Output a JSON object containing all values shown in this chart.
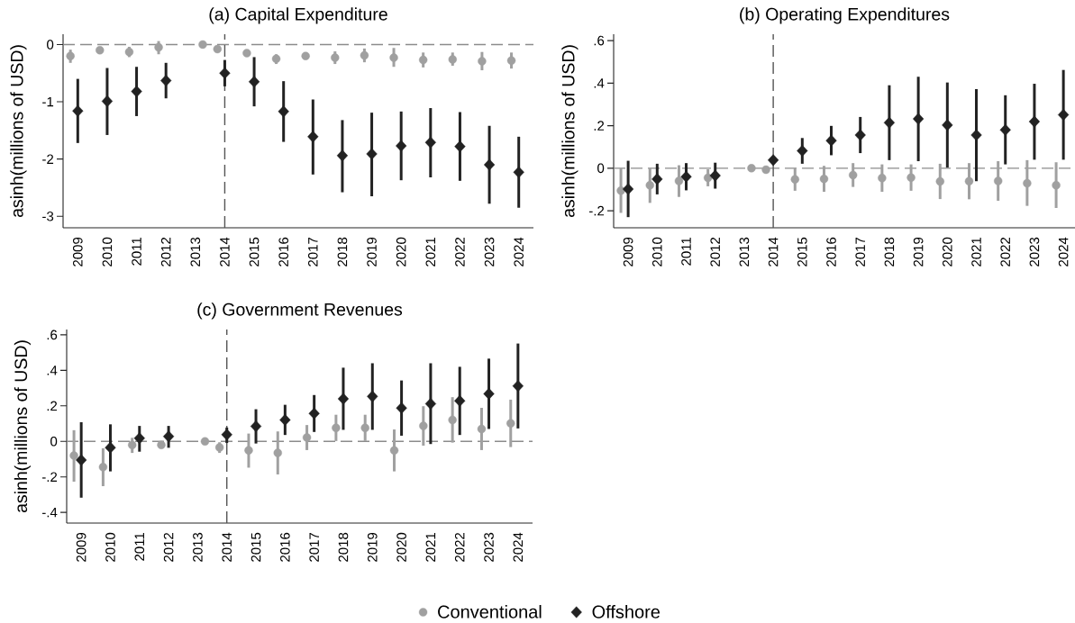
{
  "chart_data": [
    {
      "type": "scatter",
      "title": "(a) Capital Expenditure",
      "ylabel": "asinh(millions of USD)",
      "xlim": [
        2008.5,
        2024.5
      ],
      "ylim": [
        -3.2,
        0.18
      ],
      "xticks": [
        2009,
        2010,
        2011,
        2012,
        2013,
        2014,
        2015,
        2016,
        2017,
        2018,
        2019,
        2020,
        2021,
        2022,
        2023,
        2024
      ],
      "yticks": [
        -3,
        -2,
        -1,
        0
      ],
      "ref_lines": [
        {
          "axis": "y",
          "value": 0,
          "line_style": "dashed",
          "color": "#8c8c8c"
        },
        {
          "axis": "x",
          "value": 2014,
          "line_style": "dashed",
          "color": "#555555"
        }
      ],
      "series": [
        {
          "color": "#a0a0a0",
          "marker": "circle",
          "x": [
            2008.75,
            2009.75,
            2010.75,
            2011.75,
            2013.25,
            2013.75,
            2014.75,
            2015.75,
            2016.75,
            2017.75,
            2018.75,
            2019.75,
            2020.75,
            2021.75,
            2022.75,
            2023.75
          ],
          "values": [
            -0.2,
            -0.1,
            -0.13,
            -0.05,
            0,
            -0.08,
            -0.15,
            -0.25,
            -0.2,
            -0.23,
            -0.19,
            -0.23,
            -0.27,
            -0.26,
            -0.29,
            -0.28
          ],
          "errors": [
            [
              -0.32,
              -0.09
            ],
            [
              -0.16,
              -0.04
            ],
            [
              -0.22,
              -0.04
            ],
            [
              -0.17,
              0.06
            ],
            null,
            null,
            null,
            [
              -0.34,
              -0.17
            ],
            [
              -0.26,
              -0.14
            ],
            [
              -0.34,
              -0.12
            ],
            [
              -0.31,
              -0.07
            ],
            [
              -0.39,
              -0.06
            ],
            [
              -0.4,
              -0.14
            ],
            [
              -0.37,
              -0.14
            ],
            [
              -0.45,
              -0.13
            ],
            [
              -0.42,
              -0.14
            ]
          ]
        },
        {
          "color": "#222222",
          "marker": "diamond",
          "x": [
            2009,
            2010,
            2011,
            2012,
            2014,
            2015,
            2016,
            2017,
            2018,
            2019,
            2020,
            2021,
            2022,
            2023,
            2024
          ],
          "values": [
            -1.16,
            -0.99,
            -0.82,
            -0.63,
            -0.5,
            -0.65,
            -1.17,
            -1.61,
            -1.94,
            -1.91,
            -1.77,
            -1.71,
            -1.78,
            -2.1,
            -2.23
          ],
          "errors": [
            [
              -1.72,
              -0.6
            ],
            [
              -1.58,
              -0.41
            ],
            [
              -1.25,
              -0.39
            ],
            [
              -0.94,
              -0.32
            ],
            [
              -0.73,
              -0.27
            ],
            [
              -1.08,
              -0.22
            ],
            [
              -1.7,
              -0.64
            ],
            [
              -2.27,
              -0.96
            ],
            [
              -2.58,
              -1.32
            ],
            [
              -2.65,
              -1.19
            ],
            [
              -2.37,
              -1.17
            ],
            [
              -2.32,
              -1.11
            ],
            [
              -2.38,
              -1.18
            ],
            [
              -2.78,
              -1.42
            ],
            [
              -2.85,
              -1.61
            ]
          ]
        }
      ]
    },
    {
      "type": "scatter",
      "title": "(b) Operating Expenditures",
      "ylabel": "asinh(millions of USD)",
      "xlim": [
        2008.5,
        2024.4
      ],
      "ylim": [
        -0.28,
        0.63
      ],
      "xticks": [
        2009,
        2010,
        2011,
        2012,
        2013,
        2014,
        2015,
        2016,
        2017,
        2018,
        2019,
        2020,
        2021,
        2022,
        2023,
        2024
      ],
      "yticks": [
        {
          "value": -0.2,
          "label": "-.2"
        },
        0,
        {
          "value": 0.2,
          "label": ".2"
        },
        {
          "value": 0.4,
          "label": ".4"
        },
        {
          "value": 0.6,
          "label": ".6"
        }
      ],
      "ref_lines": [
        {
          "axis": "y",
          "value": 0,
          "line_style": "dashed",
          "color": "#8c8c8c"
        },
        {
          "axis": "x",
          "value": 2014,
          "line_style": "dashed",
          "color": "#555555"
        }
      ],
      "series": [
        {
          "color": "#a0a0a0",
          "marker": "circle",
          "x": [
            2008.75,
            2009.75,
            2010.75,
            2011.75,
            2013.25,
            2013.75,
            2014.75,
            2015.75,
            2016.75,
            2017.75,
            2018.75,
            2019.75,
            2020.75,
            2021.75,
            2022.75,
            2023.75
          ],
          "values": [
            -0.105,
            -0.08,
            -0.06,
            -0.045,
            0,
            -0.007,
            -0.052,
            -0.05,
            -0.032,
            -0.046,
            -0.044,
            -0.062,
            -0.061,
            -0.06,
            -0.071,
            -0.08
          ],
          "errors": [
            [
              -0.21,
              0
            ],
            [
              -0.163,
              0
            ],
            [
              -0.135,
              0.014
            ],
            [
              -0.085,
              -0.005
            ],
            null,
            null,
            [
              -0.106,
              0
            ],
            [
              -0.111,
              0.011
            ],
            [
              -0.088,
              0.024
            ],
            [
              -0.111,
              0.018
            ],
            [
              -0.106,
              0.018
            ],
            [
              -0.145,
              0.021
            ],
            [
              -0.146,
              0.024
            ],
            [
              -0.153,
              0.033
            ],
            [
              -0.177,
              0.038
            ],
            [
              -0.187,
              0.028
            ]
          ]
        },
        {
          "color": "#222222",
          "marker": "diamond",
          "x": [
            2009,
            2010,
            2011,
            2012,
            2014,
            2015,
            2016,
            2017,
            2018,
            2019,
            2020,
            2021,
            2022,
            2023,
            2024
          ],
          "values": [
            -0.098,
            -0.051,
            -0.04,
            -0.035,
            0.038,
            0.082,
            0.13,
            0.156,
            0.214,
            0.232,
            0.203,
            0.156,
            0.18,
            0.219,
            0.251
          ],
          "errors": [
            [
              -0.23,
              0.035
            ],
            [
              -0.123,
              0.021
            ],
            [
              -0.104,
              0.024
            ],
            [
              -0.096,
              0.026
            ],
            null,
            [
              0.021,
              0.142
            ],
            [
              0.061,
              0.199
            ],
            [
              0.071,
              0.241
            ],
            [
              0.038,
              0.39
            ],
            [
              0.033,
              0.43
            ],
            [
              0.003,
              0.403
            ],
            [
              -0.061,
              0.372
            ],
            [
              0.018,
              0.343
            ],
            [
              0.04,
              0.397
            ],
            [
              0.04,
              0.462
            ]
          ]
        }
      ]
    },
    {
      "type": "scatter",
      "title": "(c) Government Revenues",
      "ylabel": "asinh(millions of USD)",
      "xlim": [
        2008.5,
        2024.5
      ],
      "ylim": [
        -0.46,
        0.63
      ],
      "xticks": [
        2009,
        2010,
        2011,
        2012,
        2013,
        2014,
        2015,
        2016,
        2017,
        2018,
        2019,
        2020,
        2021,
        2022,
        2023,
        2024
      ],
      "yticks": [
        {
          "value": -0.4,
          "label": "-.4"
        },
        {
          "value": -0.2,
          "label": "-.2"
        },
        0,
        {
          "value": 0.2,
          "label": ".2"
        },
        {
          "value": 0.4,
          "label": ".4"
        },
        {
          "value": 0.6,
          "label": ".6"
        }
      ],
      "legend": "bottom",
      "ref_lines": [
        {
          "axis": "y",
          "value": 0,
          "line_style": "dashed",
          "color": "#8c8c8c"
        },
        {
          "axis": "x",
          "value": 2014,
          "line_style": "dashed",
          "color": "#555555"
        }
      ],
      "series": [
        {
          "name": "Conventional",
          "color": "#a0a0a0",
          "marker": "circle",
          "x": [
            2008.75,
            2009.75,
            2010.75,
            2011.75,
            2013.25,
            2013.75,
            2014.75,
            2015.75,
            2016.75,
            2017.75,
            2018.75,
            2019.75,
            2020.75,
            2021.75,
            2022.75,
            2023.75
          ],
          "values": [
            -0.08,
            -0.145,
            -0.02,
            -0.02,
            0,
            -0.034,
            -0.05,
            -0.065,
            0.022,
            0.076,
            0.076,
            -0.051,
            0.087,
            0.121,
            0.07,
            0.102
          ],
          "errors": [
            [
              -0.227,
              0.063
            ],
            [
              -0.252,
              -0.039
            ],
            [
              -0.065,
              0.02
            ],
            null,
            null,
            [
              -0.065,
              -0.005
            ],
            [
              -0.148,
              0.044
            ],
            [
              -0.186,
              0.056
            ],
            [
              -0.049,
              0.092
            ],
            [
              0.002,
              0.15
            ],
            [
              0.002,
              0.15
            ],
            [
              -0.169,
              0.067
            ],
            [
              -0.024,
              0.198
            ],
            [
              -0.007,
              0.249
            ],
            [
              -0.049,
              0.189
            ],
            [
              -0.032,
              0.235
            ]
          ]
        },
        {
          "name": "Offshore",
          "color": "#222222",
          "marker": "diamond",
          "x": [
            2009,
            2010,
            2011,
            2012,
            2014,
            2015,
            2016,
            2017,
            2018,
            2019,
            2020,
            2021,
            2022,
            2023,
            2024
          ],
          "values": [
            -0.105,
            -0.035,
            0.018,
            0.028,
            0.038,
            0.085,
            0.121,
            0.157,
            0.24,
            0.253,
            0.188,
            0.212,
            0.228,
            0.268,
            0.312
          ],
          "errors": [
            [
              -0.317,
              0.108
            ],
            [
              -0.169,
              0.096
            ],
            [
              -0.058,
              0.087
            ],
            [
              -0.036,
              0.087
            ],
            [
              -0.009,
              0.078
            ],
            [
              -0.012,
              0.181
            ],
            [
              0.036,
              0.206
            ],
            [
              0.053,
              0.261
            ],
            [
              0.065,
              0.415
            ],
            [
              0.065,
              0.44
            ],
            [
              0.032,
              0.343
            ],
            [
              -0.015,
              0.44
            ],
            [
              0.036,
              0.42
            ],
            [
              0.07,
              0.466
            ],
            [
              0.073,
              0.551
            ]
          ]
        }
      ]
    }
  ]
}
